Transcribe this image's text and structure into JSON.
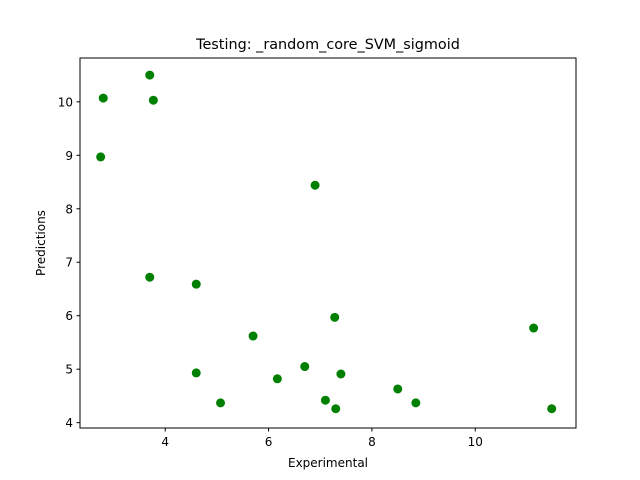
{
  "chart_data": {
    "type": "scatter",
    "title": "Testing: _random_core_SVM_sigmoid",
    "xlabel": "Experimental",
    "ylabel": "Predictions",
    "xlim": [
      2.35,
      11.95
    ],
    "ylim": [
      3.9,
      10.82
    ],
    "xticks": [
      4,
      6,
      8,
      10
    ],
    "yticks": [
      4,
      5,
      6,
      7,
      8,
      9,
      10
    ],
    "grid": false,
    "marker_color": "#008000",
    "series": [
      {
        "points": [
          {
            "x": 3.7,
            "y": 10.5
          },
          {
            "x": 2.8,
            "y": 10.07
          },
          {
            "x": 3.77,
            "y": 10.03
          },
          {
            "x": 2.75,
            "y": 8.97
          },
          {
            "x": 6.9,
            "y": 8.44
          },
          {
            "x": 3.7,
            "y": 6.72
          },
          {
            "x": 4.6,
            "y": 6.59
          },
          {
            "x": 7.28,
            "y": 5.97
          },
          {
            "x": 11.13,
            "y": 5.77
          },
          {
            "x": 5.7,
            "y": 5.62
          },
          {
            "x": 6.7,
            "y": 5.05
          },
          {
            "x": 4.6,
            "y": 4.93
          },
          {
            "x": 7.4,
            "y": 4.91
          },
          {
            "x": 6.17,
            "y": 4.82
          },
          {
            "x": 8.5,
            "y": 4.63
          },
          {
            "x": 7.1,
            "y": 4.42
          },
          {
            "x": 5.07,
            "y": 4.37
          },
          {
            "x": 8.85,
            "y": 4.37
          },
          {
            "x": 7.3,
            "y": 4.26
          },
          {
            "x": 11.48,
            "y": 4.26
          }
        ]
      }
    ]
  }
}
